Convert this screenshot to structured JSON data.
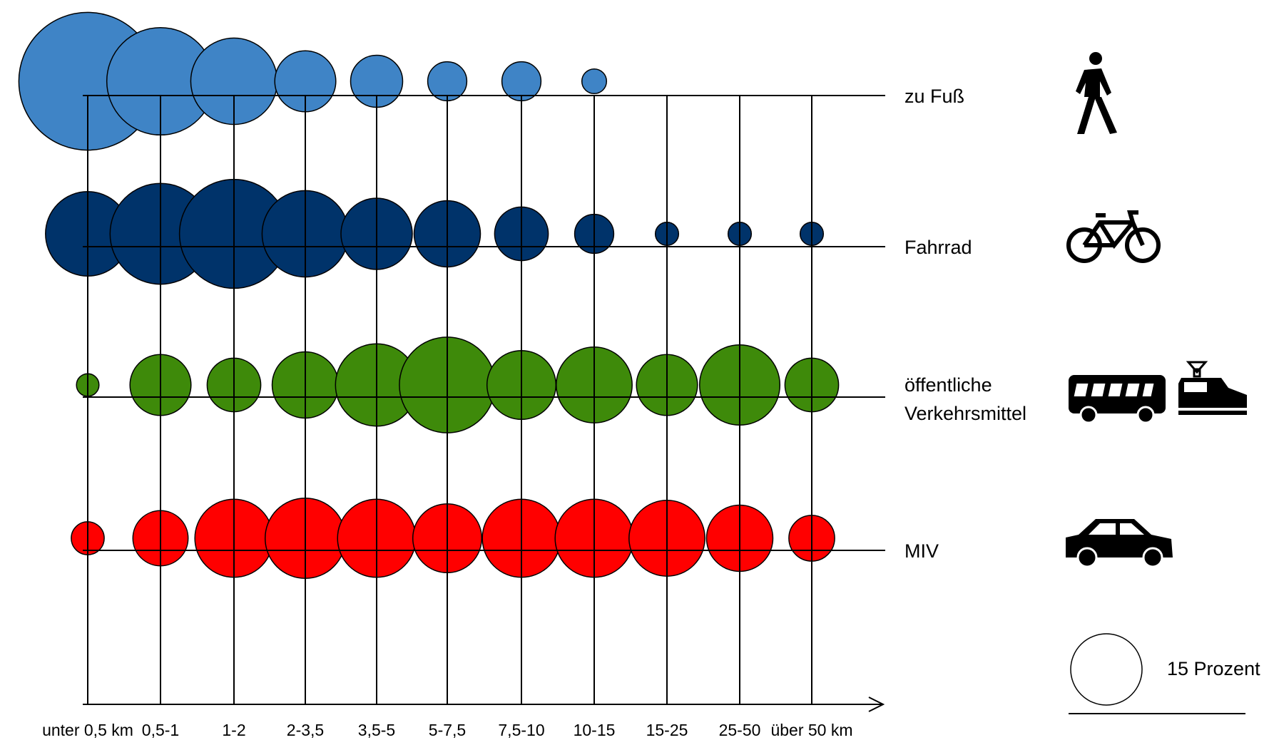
{
  "chart_data": {
    "type": "bubble",
    "title": "",
    "x_axis_unit": "km",
    "categories": [
      "unter 0,5 km",
      "0,5-1",
      "1-2",
      "2-3,5",
      "3,5-5",
      "5-7,5",
      "7,5-10",
      "10-15",
      "15-25",
      "25-50",
      "über 50 km"
    ],
    "series": [
      {
        "name": "zu Fuß",
        "label_lines": [
          "zu Fuß"
        ],
        "icon": "pedestrian-icon",
        "color": "#3F84C6",
        "values": [
          56,
          34,
          22,
          11,
          8,
          4.5,
          4.5,
          1.8,
          null,
          null,
          null
        ]
      },
      {
        "name": "Fahrrad",
        "label_lines": [
          "Fahrrad"
        ],
        "icon": "bicycle-icon",
        "color": "#00336A",
        "values": [
          21,
          30,
          35,
          22,
          15,
          13,
          8.5,
          4.5,
          1.6,
          1.6,
          1.6
        ]
      },
      {
        "name": "öffentliche Verkehrsmittel",
        "label_lines": [
          "öffentliche",
          "Verkehrsmittel"
        ],
        "icon": "bus-and-train-icon",
        "color": "#3E8A0A",
        "values": [
          1.5,
          11,
          8.5,
          13,
          20,
          27,
          14,
          17,
          11,
          19,
          8.5
        ]
      },
      {
        "name": "MIV",
        "label_lines": [
          "MIV"
        ],
        "icon": "car-icon",
        "color": "#FF0000",
        "values": [
          3.2,
          9,
          18,
          19,
          18,
          14,
          18,
          18,
          17,
          13,
          6.2
        ]
      }
    ],
    "size_legend": {
      "value": 15,
      "label": "15 Prozent"
    },
    "grid": true,
    "legend_position": "right"
  }
}
